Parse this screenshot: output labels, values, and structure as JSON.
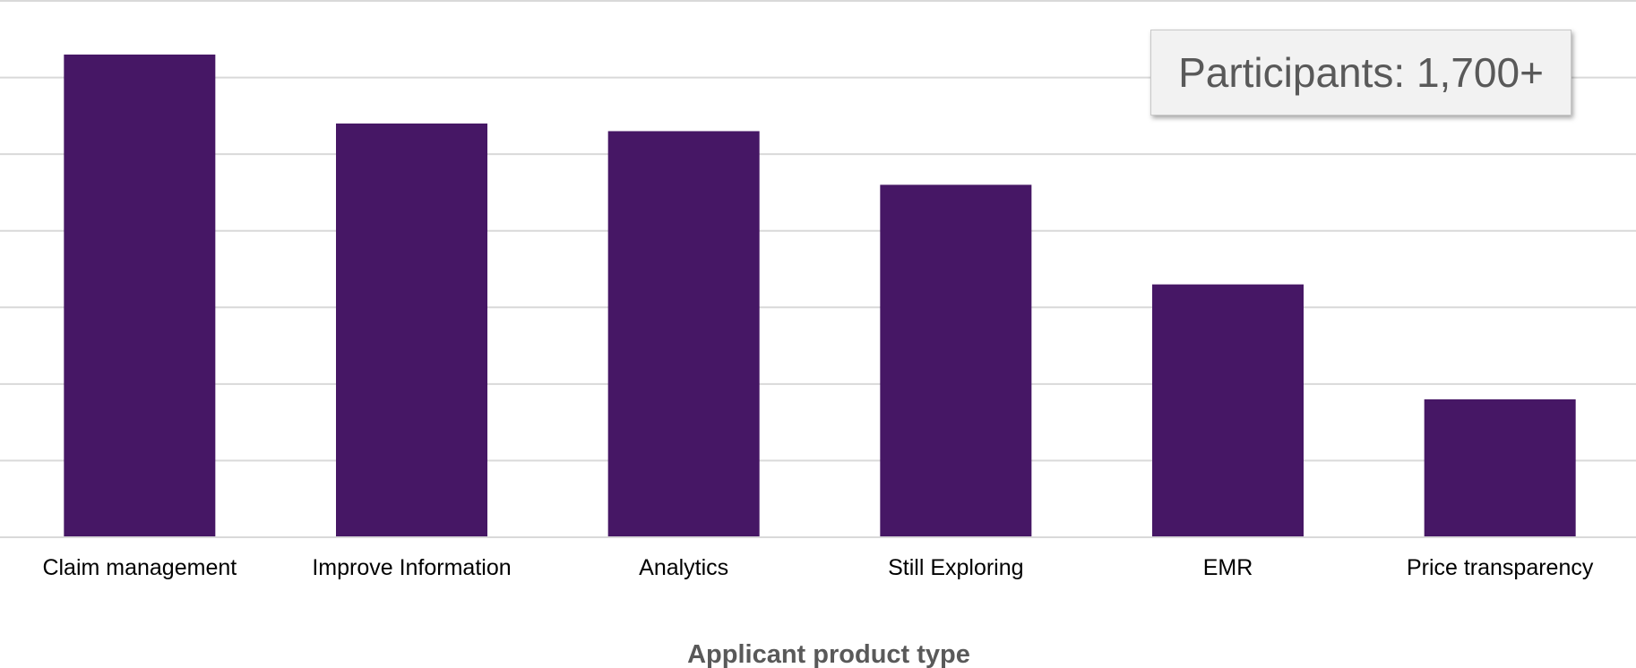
{
  "chart_data": {
    "type": "bar",
    "title": "",
    "xlabel": "Applicant product type",
    "ylabel": "",
    "categories": [
      "Claim management",
      "Improve Information",
      "Analytics",
      "Still Exploring",
      "EMR",
      "Price transparency"
    ],
    "values": [
      6.3,
      5.4,
      5.3,
      4.6,
      3.3,
      1.8
    ],
    "ylim": [
      0,
      7
    ],
    "grid": true,
    "color": "#461765",
    "gridline_color": "#d9d9d9",
    "annotation": "Participants: 1,700+"
  }
}
